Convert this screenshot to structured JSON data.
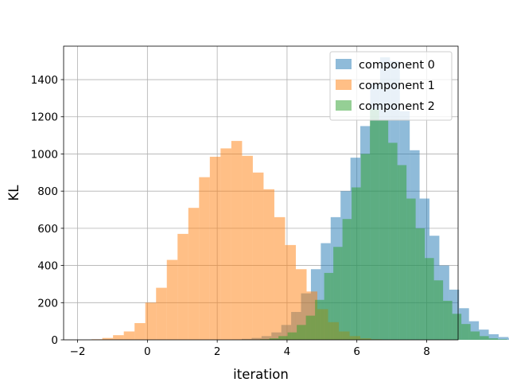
{
  "chart_data": {
    "type": "histogram",
    "xlabel": "iteration",
    "ylabel": "KL",
    "xlim": [
      -2.4,
      8.9
    ],
    "ylim": [
      0,
      1580
    ],
    "x_ticks": [
      -2,
      0,
      2,
      4,
      6,
      8
    ],
    "y_ticks": [
      0,
      200,
      400,
      600,
      800,
      1000,
      1200,
      1400
    ],
    "grid": true,
    "legend_position": "top-right",
    "series": [
      {
        "name": "component 0",
        "color": "#1f77b4",
        "alpha": 0.5,
        "bin_start": 2.42,
        "bin_width": 0.283,
        "counts": [
          2,
          5,
          10,
          20,
          40,
          80,
          150,
          250,
          380,
          520,
          660,
          800,
          980,
          1150,
          1380,
          1520,
          1500,
          1230,
          1020,
          760,
          560,
          400,
          270,
          170,
          100,
          55,
          30,
          15,
          8,
          3
        ]
      },
      {
        "name": "component 1",
        "color": "#ff7f0e",
        "alpha": 0.5,
        "bin_start": -1.6,
        "bin_width": 0.308,
        "counts": [
          3,
          10,
          25,
          45,
          90,
          200,
          280,
          430,
          570,
          710,
          875,
          985,
          1030,
          1070,
          990,
          900,
          810,
          660,
          510,
          380,
          260,
          165,
          95,
          45,
          20,
          8,
          3
        ]
      },
      {
        "name": "component 2",
        "color": "#2ca02c",
        "alpha": 0.5,
        "bin_start": 3.23,
        "bin_width": 0.262,
        "counts": [
          3,
          8,
          20,
          40,
          80,
          130,
          215,
          360,
          500,
          650,
          820,
          1000,
          1240,
          1180,
          1060,
          940,
          760,
          600,
          440,
          320,
          210,
          140,
          85,
          45,
          20,
          8,
          3
        ]
      }
    ]
  }
}
